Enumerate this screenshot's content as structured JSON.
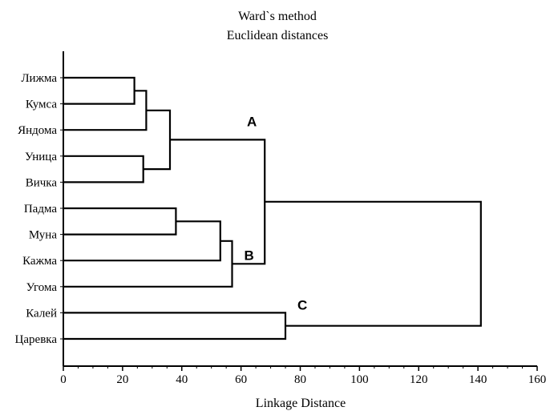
{
  "chart_data": {
    "type": "dendrogram",
    "title": "Ward`s method",
    "subtitle": "Euclidean distances",
    "xlabel": "Linkage Distance",
    "xlim": [
      0,
      160
    ],
    "x_ticks": [
      0,
      20,
      40,
      60,
      80,
      100,
      120,
      140,
      160
    ],
    "leaves": [
      "Лижма",
      "Кумса",
      "Яндома",
      "Уница",
      "Вичка",
      "Падма",
      "Муна",
      "Кажма",
      "Угома",
      "Калей",
      "Царевка"
    ],
    "merges": [
      {
        "id": "m1",
        "left": "Лижма",
        "right": "Кумса",
        "distance": 24
      },
      {
        "id": "m2",
        "left": "m1",
        "right": "Яндома",
        "distance": 28
      },
      {
        "id": "m3",
        "left": "Уница",
        "right": "Вичка",
        "distance": 27
      },
      {
        "id": "m4",
        "left": "m2",
        "right": "m3",
        "distance": 36
      },
      {
        "id": "m5",
        "left": "Падма",
        "right": "Муна",
        "distance": 38
      },
      {
        "id": "m6",
        "left": "m5",
        "right": "Кажма",
        "distance": 53
      },
      {
        "id": "m7",
        "left": "m6",
        "right": "Угома",
        "distance": 57
      },
      {
        "id": "m8",
        "left": "m4",
        "right": "m7",
        "distance": 68
      },
      {
        "id": "m9",
        "left": "Калей",
        "right": "Царевка",
        "distance": 75
      },
      {
        "id": "m10",
        "left": "m8",
        "right": "m9",
        "distance": 141
      }
    ],
    "cluster_labels": [
      {
        "text": "A",
        "cluster": "m4"
      },
      {
        "text": "B",
        "cluster": "m7"
      },
      {
        "text": "C",
        "cluster": "m9"
      }
    ],
    "grid": false
  }
}
